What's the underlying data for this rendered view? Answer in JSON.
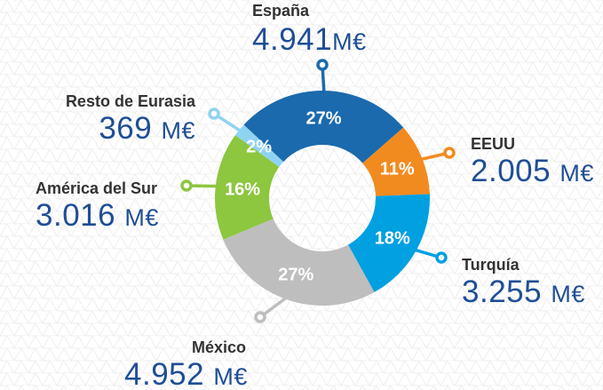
{
  "chart_data": {
    "type": "pie",
    "variant": "donut",
    "legend": "none",
    "grid": false,
    "slices": [
      {
        "name": "España",
        "value": 4941,
        "value_label": "4.941",
        "unit": "M€",
        "percent_label": "27%",
        "color": "#1b6aad"
      },
      {
        "name": "EEUU",
        "value": 2005,
        "value_label": "2.005",
        "unit": "M€",
        "percent_label": "11%",
        "color": "#f28b1f"
      },
      {
        "name": "Turquía",
        "value": 3255,
        "value_label": "3.255",
        "unit": "M€",
        "percent_label": "18%",
        "color": "#00a0e1"
      },
      {
        "name": "México",
        "value": 4952,
        "value_label": "4.952",
        "unit": "M€",
        "percent_label": "27%",
        "color": "#bebebe"
      },
      {
        "name": "América del Sur",
        "value": 3016,
        "value_label": "3.016",
        "unit": "M€",
        "percent_label": "16%",
        "color": "#8dc63f"
      },
      {
        "name": "Resto de Eurasia",
        "value": 369,
        "value_label": "369",
        "unit": "M€",
        "percent_label": "2%",
        "color": "#8fd3f2"
      }
    ],
    "value_color": "#1f4e96",
    "name_color": "#333333"
  }
}
